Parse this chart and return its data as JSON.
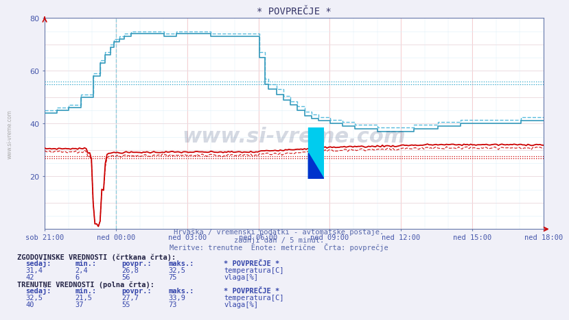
{
  "title": "* POVPREČJE *",
  "bg_color": "#f0f0f8",
  "plot_bg_color": "#ffffff",
  "x_labels": [
    "sob 21:00",
    "ned 00:00",
    "ned 03:00",
    "ned 06:00",
    "ned 09:00",
    "ned 12:00",
    "ned 15:00",
    "ned 18:00"
  ],
  "x_ticks_h": [
    0,
    3,
    6,
    9,
    12,
    15,
    18,
    21
  ],
  "ylim": [
    0,
    80
  ],
  "yticks": [
    20,
    40,
    60,
    80
  ],
  "title_color": "#333366",
  "axis_color": "#6677aa",
  "tick_color": "#4455aa",
  "subtitle1": "Hrvaška / vremenski podatki - avtomatske postaje.",
  "subtitle2": "zadnji dan / 5 minut.",
  "subtitle3": "Meritve: trenutne  Enote: metrične  Črta: povprečje",
  "subtitle_color": "#5566aa",
  "watermark_text": "www.si-vreme.com",
  "watermark_color": "#1a3060",
  "watermark_alpha": 0.18,
  "ref_temp_curr": 27.7,
  "ref_temp_hist": 26.8,
  "ref_hum_curr": 55.0,
  "ref_hum_hist": 56.0,
  "ref_red_color": "#cc0000",
  "ref_blue_color": "#33aacc",
  "grid_red_color": "#ffbbbb",
  "grid_blue_color": "#cce8f0",
  "minor_grid_blue": "#ddf0f8",
  "temp_color": "#cc0000",
  "hum_solid_color": "#3399bb",
  "hum_dashed_color": "#55bbdd",
  "bottom_blue": "#3344aa",
  "hist_label": "ZGODOVINSKE VREDNOSTI (črtkana črta):",
  "curr_label": "TRENUTNE VREDNOSTI (polna črta):",
  "col_headers": [
    "sedaj:",
    "min.:",
    "povpr.:",
    "maks.:"
  ],
  "hist_temp_vals": [
    "31,4",
    "2,4",
    "26,8",
    "32,5"
  ],
  "hist_hum_vals": [
    "42",
    "6",
    "56",
    "75"
  ],
  "curr_temp_vals": [
    "32,5",
    "21,5",
    "27,7",
    "33,9"
  ],
  "curr_hum_vals": [
    "40",
    "37",
    "55",
    "73"
  ],
  "povp_label": "* POVPREČJE *",
  "temp_label": "temperatura[C]",
  "hum_label": "vlaga[%]",
  "temp_icon_color": "#cc0000",
  "hum_icon_color": "#3399bb",
  "sivreme_side": "www.si-vreme.com"
}
